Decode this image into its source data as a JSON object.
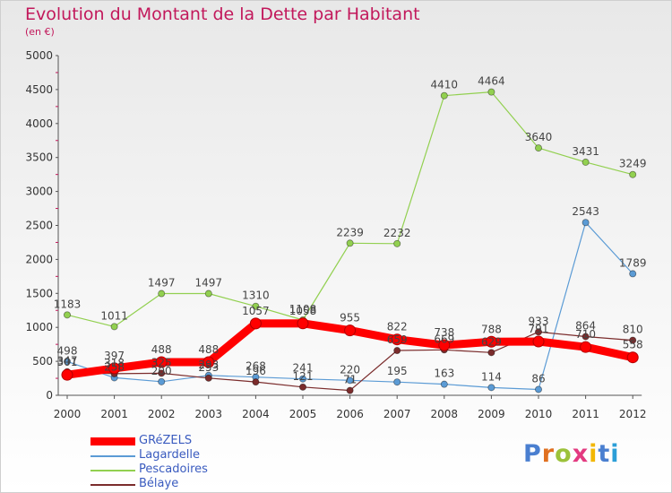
{
  "title": "Evolution du Montant de la Dette par Habitant",
  "unit": "(en €)",
  "logo": "Proxiti",
  "chart_data": {
    "type": "line",
    "x": [
      "2000",
      "2001",
      "2002",
      "2003",
      "2004",
      "2005",
      "2006",
      "2007",
      "2008",
      "2009",
      "2010",
      "2011",
      "2012"
    ],
    "ylim": [
      0,
      5000
    ],
    "yticks": [
      0,
      500,
      1000,
      1500,
      2000,
      2500,
      3000,
      3500,
      4000,
      4500,
      5000
    ],
    "grid": false,
    "legend_position": "bottom-left",
    "series": [
      {
        "name": "GRéZELS",
        "color": "#ff0000",
        "emphasis": true,
        "values": [
          301,
          397,
          488,
          488,
          1057,
          1058,
          955,
          822,
          738,
          788,
          791,
          710,
          558
        ]
      },
      {
        "name": "Lagardelle",
        "color": "#5b9bd5",
        "values": [
          498,
          258,
          200,
          293,
          268,
          241,
          220,
          195,
          163,
          114,
          86,
          2543,
          1789
        ]
      },
      {
        "name": "Pescadoires",
        "color": "#92d050",
        "values": [
          1183,
          1011,
          1497,
          1497,
          1310,
          1108,
          2239,
          2232,
          4410,
          4464,
          3640,
          3431,
          3249
        ]
      },
      {
        "name": "Bélaye",
        "color": "#7b2c2c",
        "values": [
          347,
          318,
          325,
          253,
          196,
          121,
          71,
          659,
          669,
          629,
          933,
          864,
          810
        ]
      }
    ],
    "data_labels": [
      {
        "series": 0,
        "labels": [
          "301",
          "397",
          "488",
          "488",
          "1057",
          "1058",
          "955",
          "822",
          "738",
          "788",
          "791",
          "710",
          "558"
        ]
      },
      {
        "series": 1,
        "labels": [
          "498",
          "258",
          "200",
          "293",
          "268",
          "241",
          "220",
          "195",
          "163",
          "114",
          "86",
          "2543",
          "1789"
        ]
      },
      {
        "series": 2,
        "labels": [
          "1183",
          "1011",
          "1497",
          "1497",
          "1310",
          "1108",
          "2239",
          "2232",
          "4410",
          "4464",
          "3640",
          "3431",
          "3249"
        ]
      },
      {
        "series": 3,
        "labels": [
          "347",
          "318",
          "325",
          "253",
          "196",
          "121",
          "71",
          "659",
          "669",
          "629",
          "933",
          "864",
          "810"
        ]
      }
    ]
  },
  "legend": [
    {
      "label": "GRéZELS",
      "color": "#ff0000"
    },
    {
      "label": "Lagardelle",
      "color": "#5b9bd5"
    },
    {
      "label": "Pescadoires",
      "color": "#92d050"
    },
    {
      "label": "Bélaye",
      "color": "#7b2c2c"
    }
  ],
  "logo_colors": [
    "#4a7fd0",
    "#e07020",
    "#9cc23a",
    "#e33a80",
    "#f2b705",
    "#4a7fd0",
    "#2c9fd8"
  ]
}
